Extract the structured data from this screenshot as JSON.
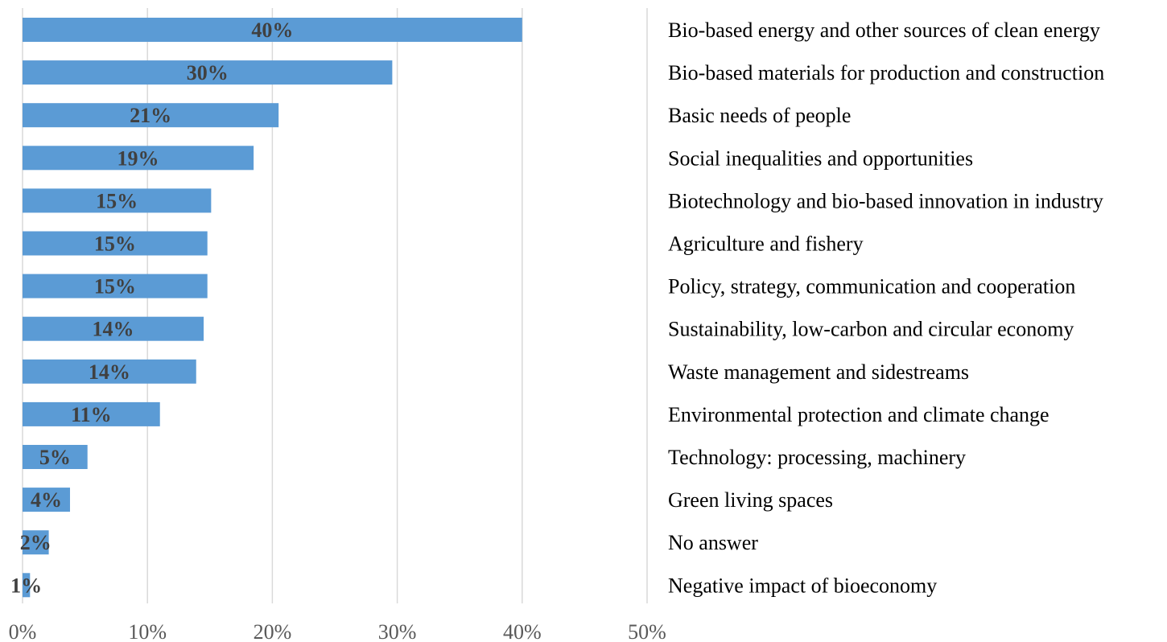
{
  "chart_data": {
    "type": "bar",
    "orientation": "horizontal",
    "title": "",
    "xlabel": "",
    "ylabel": "",
    "xlim": [
      0,
      50
    ],
    "x_ticks": [
      0,
      10,
      20,
      30,
      40,
      50
    ],
    "x_tick_labels": [
      "0%",
      "10%",
      "20%",
      "30%",
      "40%",
      "50%"
    ],
    "grid": "vertical",
    "legend": "none",
    "category_labels_position": "right",
    "bar_color": "#5b9bd5",
    "categories": [
      "Bio-based energy and  other sources of clean energy",
      "Bio-based materials for production and construction",
      "Basic needs of people",
      "Social inequalities and opportunities",
      "Biotechnology and bio-based innovation in industry",
      "Agriculture and fishery",
      "Policy, strategy, communication and cooperation",
      "Sustainability, low-carbon and circular economy",
      "Waste management and sidestreams",
      "Environmental protection and climate change",
      "Technology: processing, machinery",
      "Green living spaces",
      "No answer",
      "Negative impact of bioeconomy"
    ],
    "values": [
      40,
      29.6,
      20.5,
      18.5,
      15.1,
      14.8,
      14.8,
      14.5,
      13.9,
      11,
      5.2,
      3.8,
      2.1,
      0.6
    ],
    "data_labels": [
      "40%",
      "30%",
      "21%",
      "19%",
      "15%",
      "15%",
      "15%",
      "14%",
      "14%",
      "11%",
      "5%",
      "4%",
      "2%",
      "1%"
    ]
  }
}
